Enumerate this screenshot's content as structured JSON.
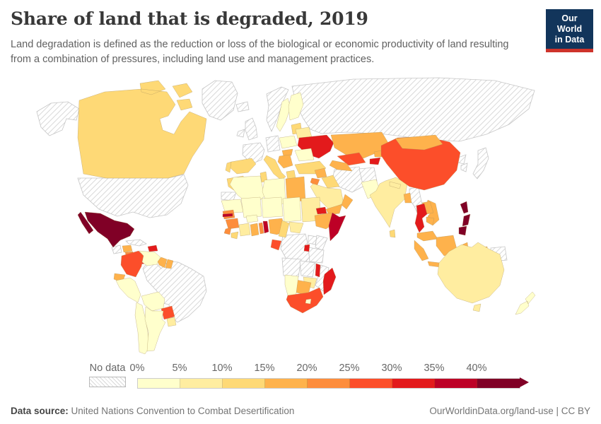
{
  "header": {
    "title": "Share of land that is degraded, 2019",
    "subtitle_line1": "Land degradation is defined as the reduction or loss of the biological or economic productivity of land resulting",
    "subtitle_line2": "from a combination of pressures, including land use and management practices.",
    "logo": {
      "line1": "Our World",
      "line2": "in Data",
      "bg_color": "#12355B",
      "accent_color": "#CE332B"
    }
  },
  "footer": {
    "datasource_label": "Data source:",
    "datasource_value": " United Nations Convention to Combat Desertification",
    "link": "OurWorldinData.org/land-use",
    "license": " | CC BY"
  },
  "chart_data": {
    "type": "heatmap",
    "subtype": "choropleth-world-map",
    "title": "Share of land that is degraded, 2019",
    "year": 2019,
    "unit": "share of land area (%)",
    "legend": {
      "no_data_label": "No data",
      "ticks": [
        "0%",
        "5%",
        "10%",
        "15%",
        "20%",
        "25%",
        "30%",
        "35%",
        "40%"
      ],
      "bins": [
        {
          "label": "0-5%",
          "color": "#FFFFCC"
        },
        {
          "label": "5-10%",
          "color": "#FFEDA0"
        },
        {
          "label": "10-15%",
          "color": "#FED976"
        },
        {
          "label": "15-20%",
          "color": "#FEB24C"
        },
        {
          "label": "20-25%",
          "color": "#FD8D3C"
        },
        {
          "label": "25-30%",
          "color": "#FC4E2A"
        },
        {
          "label": "30-35%",
          "color": "#E31A1C"
        },
        {
          "label": "35-40%",
          "color": "#BD0026"
        },
        {
          "label": ">40%",
          "color": "#800026"
        }
      ]
    },
    "countries": {
      "United States": "No data",
      "Greenland": "No data",
      "Brazil": "No data",
      "Guatemala": "No data",
      "Cuba": "No data",
      "Iceland": "No data",
      "United Kingdom": "No data",
      "Ireland": "No data",
      "Norway": "No data",
      "Germany": "No data",
      "France": "No data",
      "Russia": "No data",
      "Iran": "No data",
      "Afghanistan": "No data",
      "Myanmar": "No data",
      "North Korea": "No data",
      "South Korea": "No data",
      "Japan": "No data",
      "Papua New Guinea": "No data",
      "Democratic Republic of Congo": "No data",
      "Uganda": "No data",
      "Kenya": "No data",
      "Tanzania": "No data",
      "Angola": "No data",
      "Zambia": "No data",
      "Mozambique": "No data",
      "Western Sahara": "No data",
      "Canada": "10-15%",
      "Mexico": ">40%",
      "Honduras": "15-20%",
      "Nicaragua": "20-25%",
      "Costa Rica": "30-35%",
      "Panama": "30-35%",
      "Haiti": "30-35%",
      "Colombia": "25-30%",
      "Venezuela": "0-5%",
      "Guyana": "15-20%",
      "Suriname": "15-20%",
      "Ecuador": "15-20%",
      "Peru": "0-5%",
      "Bolivia": "0-5%",
      "Paraguay": "25-30%",
      "Chile": "0-5%",
      "Argentina": "0-5%",
      "Uruguay": "5-10%",
      "Sweden": "0-5%",
      "Finland": "0-5%",
      "Latvia": "10-15%",
      "Poland": "0-5%",
      "Belarus": "5-10%",
      "Ukraine": "30-35%",
      "Romania": "0-5%",
      "Hungary": "15-20%",
      "Serbia": "15-20%",
      "Italy": "10-15%",
      "Greece": "10-15%",
      "Spain": "10-15%",
      "Portugal": "10-15%",
      "Turkey": "10-15%",
      "Kazakhstan": "15-20%",
      "Uzbekistan": "25-30%",
      "Turkmenistan": "15-20%",
      "Kyrgyzstan": "15-20%",
      "Tajikistan": "30-35%",
      "Syria": "15-20%",
      "Iraq": "10-15%",
      "Jordan": "20-25%",
      "Saudi Arabia": "5-10%",
      "Yemen": "15-20%",
      "Oman": "15-20%",
      "Pakistan": "0-5%",
      "India": "5-10%",
      "Nepal": "5-10%",
      "Bangladesh": "15-20%",
      "Sri Lanka": "10-15%",
      "China": "25-30%",
      "Mongolia": "15-20%",
      "Thailand": "30-35%",
      "Laos": "15-20%",
      "Vietnam": "15-20%",
      "Cambodia": "15-20%",
      "Malaysia": "15-20%",
      "Indonesia": "15-20%",
      "Philippines": ">40%",
      "Australia": "5-10%",
      "New Zealand": "0-5%",
      "Morocco": "10-15%",
      "Algeria": "0-5%",
      "Tunisia": "10-15%",
      "Libya": "0-5%",
      "Egypt": "15-20%",
      "Mauritania": "0-5%",
      "Mali": "0-5%",
      "Burkina Faso": "0-5%",
      "Niger": "0-5%",
      "Chad": "0-5%",
      "Sudan": "5-10%",
      "Eritrea": "30-35%",
      "Ethiopia": "15-20%",
      "Somalia": "35-40%",
      "Senegal": "20-25%",
      "Gambia": "35-40%",
      "Guinea": "20-25%",
      "Sierra Leone": "20-25%",
      "Liberia": "10-15%",
      "Cote d'Ivoire": "5-10%",
      "Ghana": "15-20%",
      "Togo": "20-25%",
      "Benin": "35-40%",
      "Nigeria": "15-20%",
      "Cameroon": "10-15%",
      "Central African Republic": "5-10%",
      "Gabon": "25-30%",
      "Rwanda": "30-35%",
      "Malawi": "30-35%",
      "Zimbabwe": "5-10%",
      "Botswana": "15-20%",
      "Namibia": "0-5%",
      "South Africa": "25-30%",
      "Lesotho": "0-5%",
      "Madagascar": "30-35%"
    }
  }
}
